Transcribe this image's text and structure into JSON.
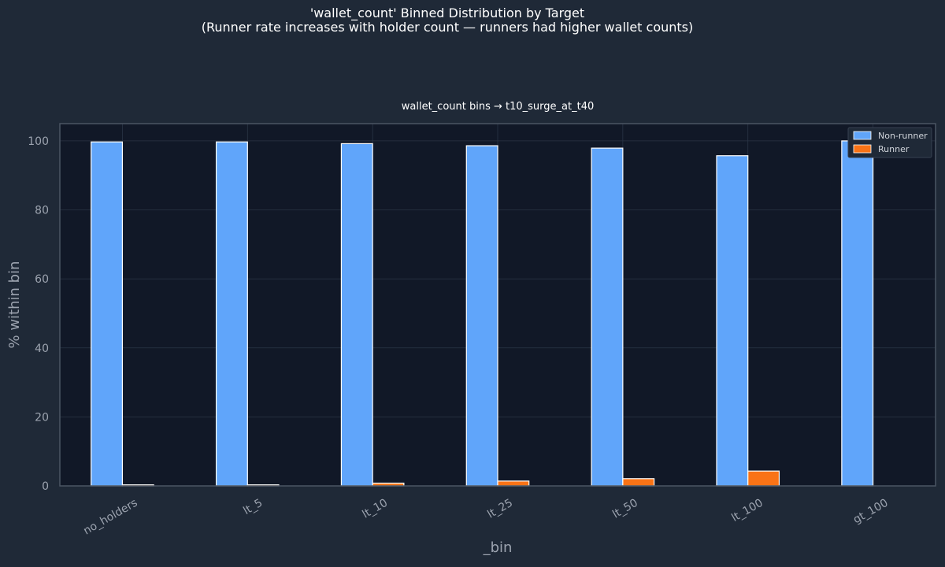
{
  "chart_data": {
    "type": "bar",
    "suptitle_line1": "'wallet_count' Binned Distribution by Target",
    "suptitle_line2": "(Runner rate increases with holder count — runners had higher wallet counts)",
    "title": "wallet_count bins → t10_surge_at_t40",
    "xlabel": "_bin",
    "ylabel": "% within bin",
    "categories": [
      "no_holders",
      "lt_5",
      "lt_10",
      "lt_25",
      "lt_50",
      "lt_100",
      "gt_100"
    ],
    "series": [
      {
        "name": "Non-runner",
        "color": "#60a5fa",
        "values": [
          99.7,
          99.7,
          99.2,
          98.6,
          97.9,
          95.7,
          100.0
        ]
      },
      {
        "name": "Runner",
        "color": "#f97316",
        "values": [
          0.3,
          0.3,
          0.8,
          1.4,
          2.1,
          4.3,
          0.0
        ]
      }
    ],
    "ylim": [
      0,
      105
    ],
    "yticks": [
      0,
      20,
      40,
      60,
      80,
      100
    ],
    "grid": true,
    "legend_position": "top-right",
    "colors": {
      "figure_bg": "#1f2937",
      "axes_bg": "#111827",
      "grid": "#2a3546",
      "spine": "#4b5563",
      "tick_text": "#9ca3af",
      "title_text": "#ffffff",
      "legend_bg": "#1f2937",
      "legend_text": "#d1d5db"
    }
  }
}
